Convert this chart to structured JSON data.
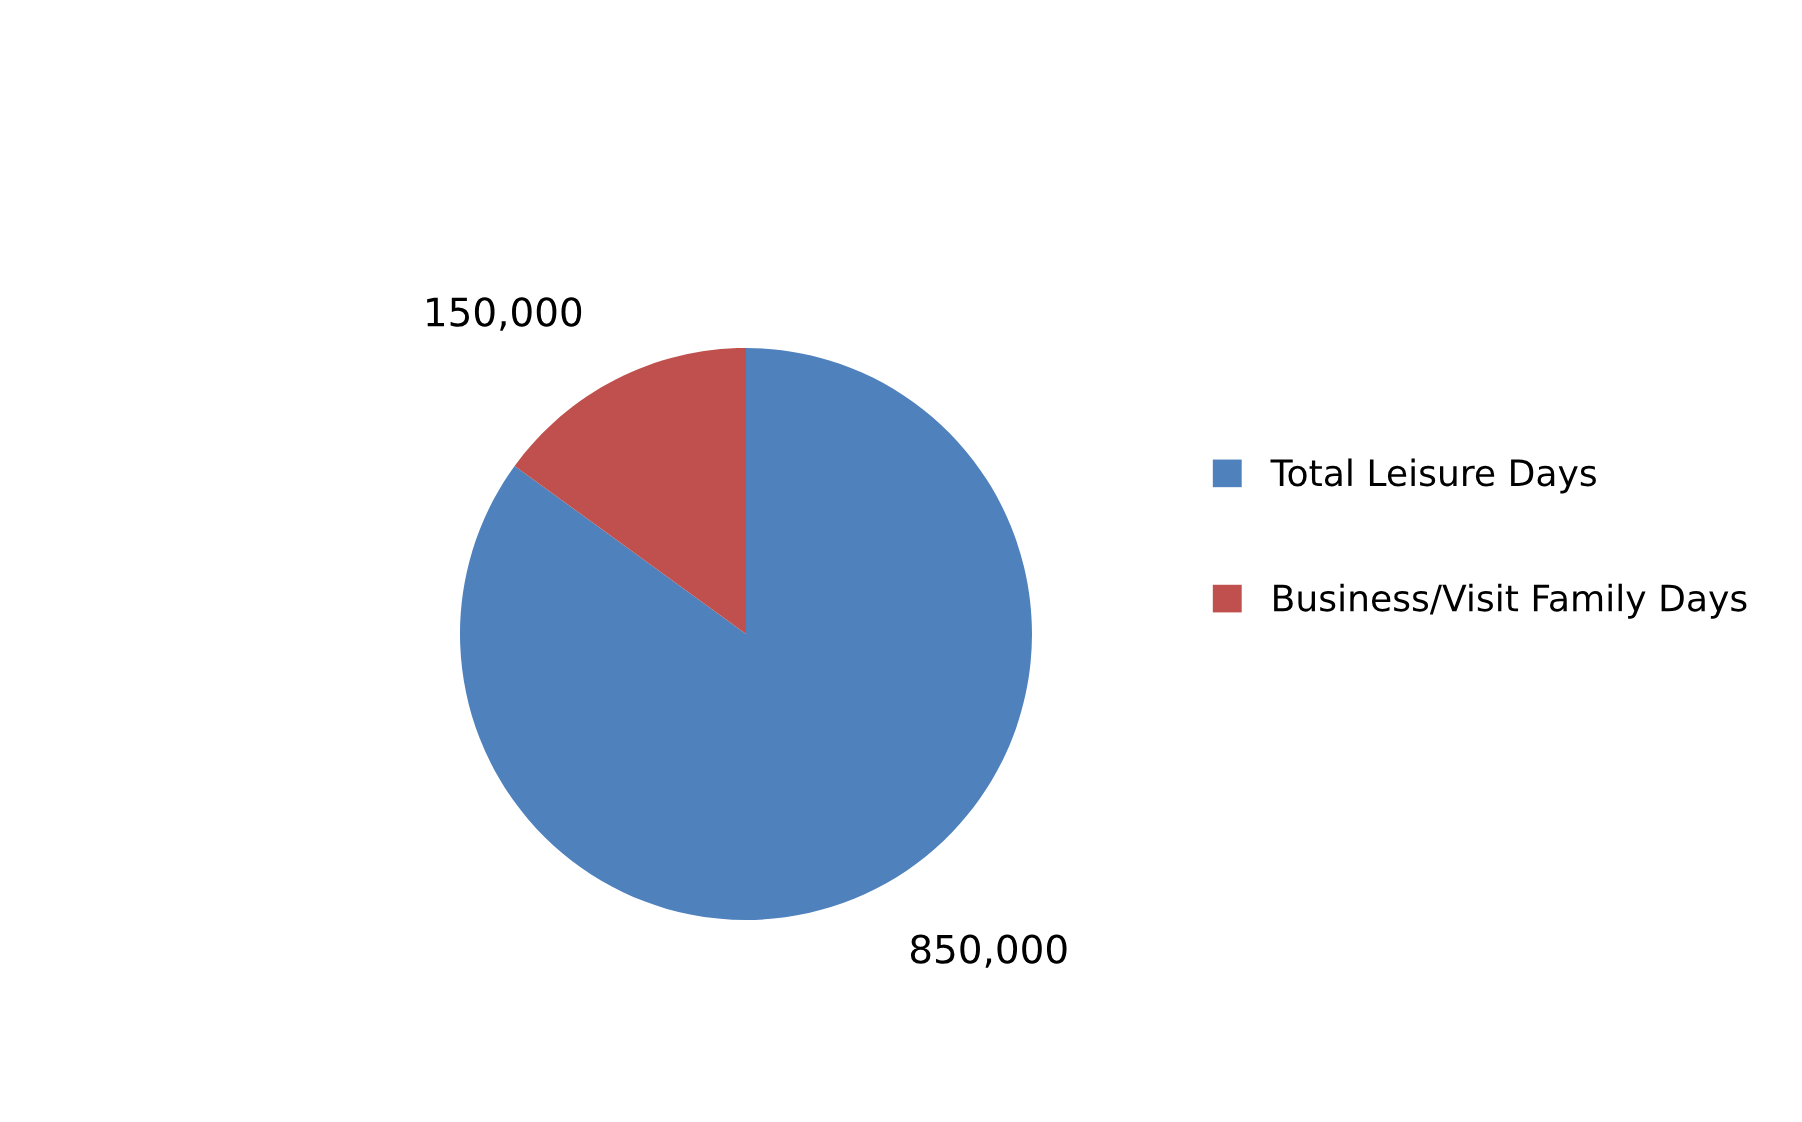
{
  "chart_data": {
    "type": "pie",
    "categories": [
      "Total Leisure Days",
      "Business/Visit Family Days"
    ],
    "values": [
      850000,
      150000
    ],
    "colors": [
      "#4f81bd",
      "#c0504d"
    ],
    "value_labels": [
      "850,000",
      "150,000"
    ],
    "legend": "right"
  }
}
